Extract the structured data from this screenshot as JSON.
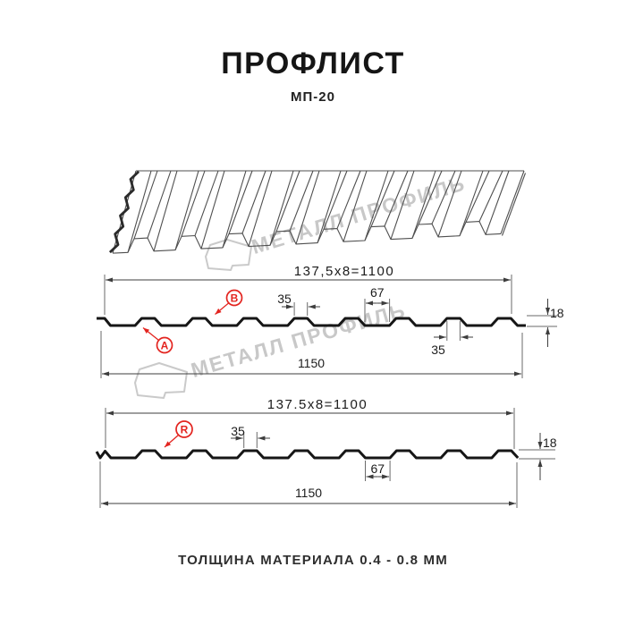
{
  "title": "ПРОФЛИСТ",
  "subtitle": "МП-20",
  "footer": "ТОЛЩИНА МАТЕРИАЛА 0.4 - 0.8 ММ",
  "watermark": {
    "brand": "МЕТАЛЛ ПРОФИЛЬ"
  },
  "colors": {
    "label_red": "#e3241f",
    "profile_ink": "#161616",
    "dimension_line": "#3d3d3d",
    "watermark_gray": "#c8c8c8"
  },
  "top_section": {
    "width_formula": "137,5x8=1100",
    "dim_rib_top": "35",
    "dim_valley": "67",
    "dim_height": "18",
    "dim_rib_bottom": "35",
    "dim_overall": "1150",
    "label_a": "A",
    "label_b": "B"
  },
  "bottom_section": {
    "width_formula": "137.5x8=1100",
    "dim_rib_top": "35",
    "dim_valley": "67",
    "dim_height": "18",
    "dim_overall": "1150",
    "label_r": "R"
  }
}
